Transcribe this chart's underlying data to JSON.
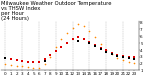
{
  "title": "Milwaukee Weather Outdoor Temperature\nvs THSW Index\nper Hour\n(24 Hours)",
  "hours": [
    0,
    1,
    2,
    3,
    4,
    5,
    6,
    7,
    8,
    9,
    10,
    11,
    12,
    13,
    14,
    15,
    16,
    17,
    18,
    19,
    20,
    21,
    22,
    23
  ],
  "temp": [
    28,
    26,
    25,
    24,
    23,
    22,
    22,
    26,
    32,
    38,
    44,
    50,
    55,
    58,
    56,
    52,
    47,
    43,
    39,
    36,
    33,
    31,
    30,
    29
  ],
  "thsw": [
    20,
    18,
    17,
    16,
    15,
    14,
    14,
    20,
    30,
    44,
    56,
    64,
    72,
    78,
    75,
    67,
    58,
    49,
    40,
    34,
    28,
    25,
    23,
    21
  ],
  "temp_color": "#dd0000",
  "thsw_color": "#ff8800",
  "black_color": "#000000",
  "bg_color": "#ffffff",
  "grid_color": "#999999",
  "ylim_min": 10,
  "ylim_max": 82,
  "ytick_positions": [
    10,
    20,
    30,
    40,
    50,
    60,
    70,
    80
  ],
  "ytick_labels": [
    "1",
    "2",
    "3",
    "4",
    "5",
    "6",
    "7",
    "8"
  ],
  "grid_hours": [
    0,
    3,
    6,
    9,
    12,
    15,
    18,
    21
  ],
  "title_fontsize": 3.8,
  "tick_fontsize": 3.0,
  "marker_size_thsw": 1.4,
  "marker_size_temp": 1.1,
  "marker_size_black": 0.9
}
